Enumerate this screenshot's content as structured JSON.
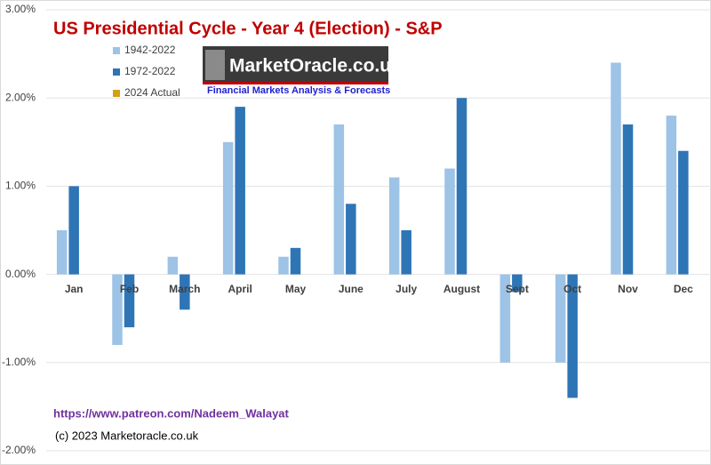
{
  "chart_data": {
    "type": "bar",
    "title": "US Presidential Cycle - Year 4 (Election) - S&P",
    "categories": [
      "Jan",
      "Feb",
      "March",
      "April",
      "May",
      "June",
      "July",
      "August",
      "Sept",
      "Oct",
      "Nov",
      "Dec"
    ],
    "series": [
      {
        "name": "1942-2022",
        "color": "#9dc3e6",
        "values": [
          0.5,
          -0.8,
          0.2,
          1.5,
          0.2,
          1.7,
          1.1,
          1.2,
          -1.0,
          -1.0,
          2.4,
          1.8
        ]
      },
      {
        "name": "1972-2022",
        "color": "#2e75b6",
        "values": [
          1.0,
          -0.6,
          -0.4,
          1.9,
          0.3,
          0.8,
          0.5,
          2.0,
          -0.2,
          -1.4,
          1.7,
          1.4
        ]
      },
      {
        "name": "2024 Actual",
        "color": "#d4a017",
        "values": [
          null,
          null,
          null,
          null,
          null,
          null,
          null,
          null,
          null,
          null,
          null,
          null
        ]
      }
    ],
    "ylim": [
      -2,
      3
    ],
    "yticks": [
      {
        "value": -2,
        "label": "-2.00%"
      },
      {
        "value": -1,
        "label": "-1.00%"
      },
      {
        "value": 0,
        "label": "0.00%"
      },
      {
        "value": 1,
        "label": "1.00%"
      },
      {
        "value": 2,
        "label": "2.00%"
      },
      {
        "value": 3,
        "label": "3.00%"
      }
    ],
    "grid": true,
    "logo": {
      "name": "MarketOracle.co.uk",
      "tagline": "Financial Markets Analysis & Forecasts"
    },
    "annotations": [
      "https://www.patreon.com/Nadeem_Walayat",
      "(c) 2023 Marketoracle.co.uk"
    ]
  }
}
